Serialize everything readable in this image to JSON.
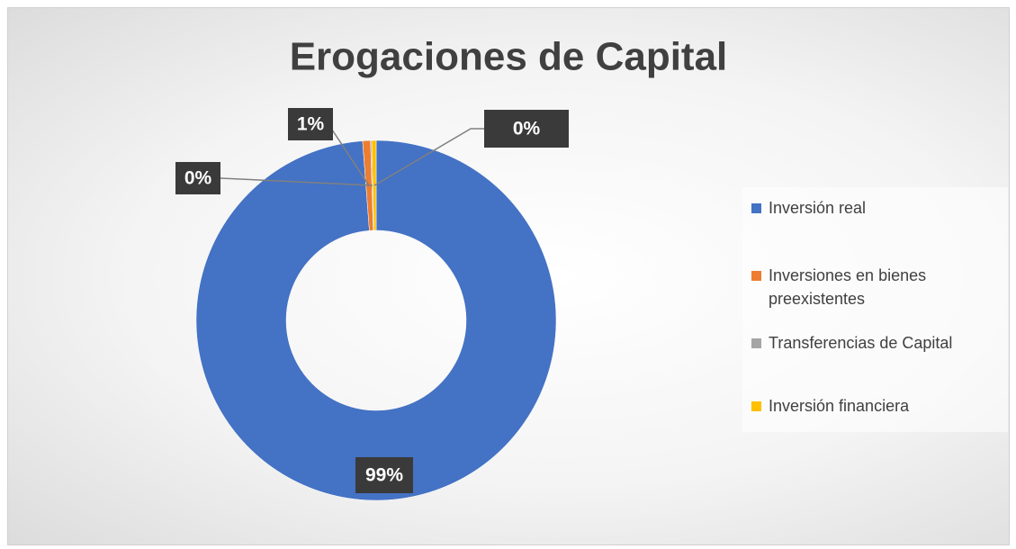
{
  "chart_data": {
    "type": "donut",
    "title": "Erogaciones de Capital",
    "categories": [
      "Inversión real",
      "Inversiones en bienes preexistentes",
      "Transferencias de Capital",
      "Inversión financiera"
    ],
    "values": [
      98.8,
      0.7,
      0.1,
      0.4
    ],
    "value_labels": [
      "99%",
      "1%",
      "0%",
      "0%"
    ],
    "colors": [
      "#4472c4",
      "#ed7d31",
      "#a5a5a5",
      "#ffc000"
    ],
    "legend": "right"
  }
}
